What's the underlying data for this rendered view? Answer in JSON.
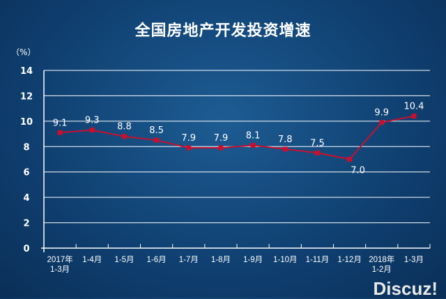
{
  "chart_data": {
    "type": "line",
    "title": "全国房地产开发投资增速",
    "ylabel": "（%）",
    "categories": [
      [
        "2017年",
        "1-3月"
      ],
      [
        "1-4月"
      ],
      [
        "1-5月"
      ],
      [
        "1-6月"
      ],
      [
        "1-7月"
      ],
      [
        "1-8月"
      ],
      [
        "1-9月"
      ],
      [
        "1-10月"
      ],
      [
        "1-11月"
      ],
      [
        "1-12月"
      ],
      [
        "2018年",
        "1-2月"
      ],
      [
        "1-3月"
      ]
    ],
    "values": [
      9.1,
      9.3,
      8.8,
      8.5,
      7.9,
      7.9,
      8.1,
      7.8,
      7.5,
      7.0,
      9.9,
      10.4
    ],
    "ylim": [
      0,
      14
    ],
    "yticks": [
      0,
      2,
      4,
      6,
      8,
      10,
      12,
      14
    ],
    "grid": true,
    "line_color": "#c8102e"
  },
  "watermark": "Discuz!"
}
